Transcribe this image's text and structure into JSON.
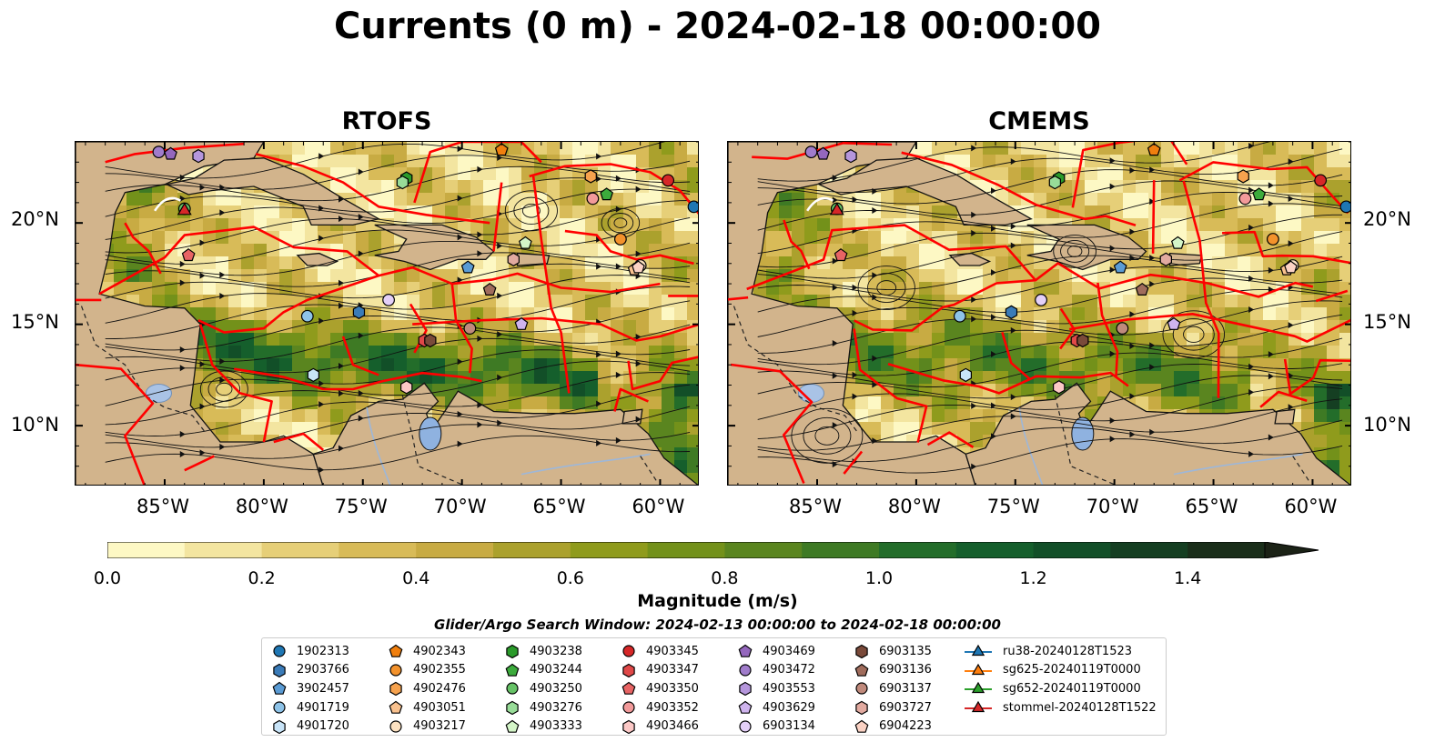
{
  "title": "Currents (0 m) - 2024-02-18 00:00:00",
  "panels": [
    {
      "title": "RTOFS"
    },
    {
      "title": "CMEMS"
    }
  ],
  "axes": {
    "lon_ticks": [
      "85°W",
      "80°W",
      "75°W",
      "70°W",
      "65°W",
      "60°W"
    ],
    "lat_ticks": [
      "20°N",
      "15°N",
      "10°N"
    ]
  },
  "colorbar": {
    "label": "Magnitude (m/s)",
    "ticks": [
      "0.0",
      "0.2",
      "0.4",
      "0.6",
      "0.8",
      "1.0",
      "1.2",
      "1.4"
    ],
    "colors": [
      "#fdf8c4",
      "#f3e5a0",
      "#e6cf78",
      "#d8bb58",
      "#c8ab43",
      "#aba12d",
      "#8f9b1c",
      "#73911a",
      "#5a851f",
      "#3e7a24",
      "#236d2a",
      "#155f2c",
      "#124f28",
      "#153f22",
      "#1a2e1a",
      "#1b2216"
    ],
    "extend": "max"
  },
  "search_window": "Glider/Argo Search Window: 2024-02-13 00:00:00 to 2024-02-18 00:00:00",
  "legend": {
    "columns": [
      [
        {
          "label": "1902313",
          "shape": "circle",
          "color": "#1f77b4"
        },
        {
          "label": "2903766",
          "shape": "hexagon",
          "color": "#3a7bb8"
        },
        {
          "label": "3902457",
          "shape": "pentagon",
          "color": "#5a9bd4"
        },
        {
          "label": "4901719",
          "shape": "circle",
          "color": "#8ec3e8"
        },
        {
          "label": "4901720",
          "shape": "hexagon",
          "color": "#c8e4f8"
        }
      ],
      [
        {
          "label": "4902343",
          "shape": "pentagon",
          "color": "#f07f0e"
        },
        {
          "label": "4902355",
          "shape": "circle",
          "color": "#f3922c"
        },
        {
          "label": "4902476",
          "shape": "hexagon",
          "color": "#f6a24e"
        },
        {
          "label": "4903051",
          "shape": "pentagon",
          "color": "#f9c18e"
        },
        {
          "label": "4903217",
          "shape": "circle",
          "color": "#fde2c2"
        }
      ],
      [
        {
          "label": "4903238",
          "shape": "hexagon",
          "color": "#2a9a2a"
        },
        {
          "label": "4903244",
          "shape": "pentagon",
          "color": "#3cab3c"
        },
        {
          "label": "4903250",
          "shape": "circle",
          "color": "#66c266"
        },
        {
          "label": "4903276",
          "shape": "hexagon",
          "color": "#98dc98"
        },
        {
          "label": "4903333",
          "shape": "pentagon",
          "color": "#d4f5c8"
        }
      ],
      [
        {
          "label": "4903345",
          "shape": "circle",
          "color": "#d62728"
        },
        {
          "label": "4903347",
          "shape": "hexagon",
          "color": "#e04848"
        },
        {
          "label": "4903350",
          "shape": "pentagon",
          "color": "#e86464"
        },
        {
          "label": "4903352",
          "shape": "circle",
          "color": "#f29a9a"
        },
        {
          "label": "4903466",
          "shape": "hexagon",
          "color": "#fcc8c6"
        }
      ],
      [
        {
          "label": "4903469",
          "shape": "pentagon",
          "color": "#9467bd"
        },
        {
          "label": "4903472",
          "shape": "circle",
          "color": "#a07ccb"
        },
        {
          "label": "4903553",
          "shape": "hexagon",
          "color": "#b596dc"
        },
        {
          "label": "4903629",
          "shape": "pentagon",
          "color": "#cfb4ee"
        },
        {
          "label": "6903134",
          "shape": "circle",
          "color": "#e4d0f8"
        }
      ],
      [
        {
          "label": "6903135",
          "shape": "hexagon",
          "color": "#7a4a3a"
        },
        {
          "label": "6903136",
          "shape": "pentagon",
          "color": "#a06c5c"
        },
        {
          "label": "6903137",
          "shape": "circle",
          "color": "#c08a7c"
        },
        {
          "label": "6903727",
          "shape": "hexagon",
          "color": "#e2aaa0"
        },
        {
          "label": "6904223",
          "shape": "pentagon",
          "color": "#fbd2c4"
        }
      ],
      [
        {
          "label": "ru38-20240128T1523",
          "shape": "triangle",
          "color": "#1f77b4"
        },
        {
          "label": "sg625-20240119T0000",
          "shape": "triangle",
          "color": "#ff7f0e"
        },
        {
          "label": "sg652-20240119T0000",
          "shape": "triangle",
          "color": "#2ca02c"
        },
        {
          "label": "stommel-20240128T1522",
          "shape": "triangle",
          "color": "#d62728"
        }
      ]
    ]
  },
  "floats": [
    {
      "label": "1902313",
      "lon": -58.3,
      "lat": 20.8,
      "shape": "circle",
      "color": "#1f77b4"
    },
    {
      "label": "2903766",
      "lon": -75.2,
      "lat": 15.6,
      "shape": "hexagon",
      "color": "#3a7bb8"
    },
    {
      "label": "3902457",
      "lon": -69.7,
      "lat": 17.8,
      "shape": "pentagon",
      "color": "#5a9bd4"
    },
    {
      "label": "4901719",
      "lon": -77.8,
      "lat": 15.4,
      "shape": "circle",
      "color": "#8ec3e8"
    },
    {
      "label": "4901720",
      "lon": -77.5,
      "lat": 12.5,
      "shape": "hexagon",
      "color": "#c8e4f8"
    },
    {
      "label": "4902343",
      "lon": -68.0,
      "lat": 23.6,
      "shape": "pentagon",
      "color": "#f07f0e"
    },
    {
      "label": "4902355",
      "lon": -62.0,
      "lat": 19.2,
      "shape": "circle",
      "color": "#f3922c"
    },
    {
      "label": "4902476",
      "lon": -63.5,
      "lat": 22.3,
      "shape": "hexagon",
      "color": "#f6a24e"
    },
    {
      "label": "4903051",
      "lon": -61.3,
      "lat": 17.7,
      "shape": "pentagon",
      "color": "#f9c18e"
    },
    {
      "label": "4903217",
      "lon": -61.0,
      "lat": 17.9,
      "shape": "circle",
      "color": "#fde2c2"
    },
    {
      "label": "4903238",
      "lon": -72.8,
      "lat": 22.2,
      "shape": "hexagon",
      "color": "#2a9a2a"
    },
    {
      "label": "4903244",
      "lon": -62.7,
      "lat": 21.4,
      "shape": "pentagon",
      "color": "#3cab3c"
    },
    {
      "label": "4903250",
      "lon": -84.0,
      "lat": 20.7,
      "shape": "circle",
      "color": "#66c266"
    },
    {
      "label": "4903276",
      "lon": -73.0,
      "lat": 22.0,
      "shape": "hexagon",
      "color": "#98dc98"
    },
    {
      "label": "4903333",
      "lon": -66.8,
      "lat": 19.0,
      "shape": "pentagon",
      "color": "#d4f5c8"
    },
    {
      "label": "4903345",
      "lon": -59.6,
      "lat": 22.1,
      "shape": "circle",
      "color": "#d62728"
    },
    {
      "label": "4903347",
      "lon": -71.9,
      "lat": 14.2,
      "shape": "hexagon",
      "color": "#e04848"
    },
    {
      "label": "4903350",
      "lon": -83.8,
      "lat": 18.4,
      "shape": "pentagon",
      "color": "#e86464"
    },
    {
      "label": "4903352",
      "lon": -63.4,
      "lat": 21.2,
      "shape": "circle",
      "color": "#f29a9a"
    },
    {
      "label": "4903466",
      "lon": -72.8,
      "lat": 11.9,
      "shape": "hexagon",
      "color": "#fcc8c6"
    },
    {
      "label": "4903469",
      "lon": -84.7,
      "lat": 23.4,
      "shape": "pentagon",
      "color": "#9467bd"
    },
    {
      "label": "4903472",
      "lon": -85.3,
      "lat": 23.5,
      "shape": "circle",
      "color": "#a07ccb"
    },
    {
      "label": "4903553",
      "lon": -83.3,
      "lat": 23.3,
      "shape": "hexagon",
      "color": "#b596dc"
    },
    {
      "label": "4903629",
      "lon": -67.0,
      "lat": 15.0,
      "shape": "pentagon",
      "color": "#cfb4ee"
    },
    {
      "label": "6903134",
      "lon": -73.7,
      "lat": 16.2,
      "shape": "circle",
      "color": "#e4d0f8"
    },
    {
      "label": "6903135",
      "lon": -71.6,
      "lat": 14.2,
      "shape": "hexagon",
      "color": "#7a4a3a"
    },
    {
      "label": "6903136",
      "lon": -68.6,
      "lat": 16.7,
      "shape": "pentagon",
      "color": "#a06c5c"
    },
    {
      "label": "6903137",
      "lon": -69.6,
      "lat": 14.8,
      "shape": "circle",
      "color": "#c08a7c"
    },
    {
      "label": "6903727",
      "lon": -67.4,
      "lat": 18.2,
      "shape": "hexagon",
      "color": "#e2aaa0"
    },
    {
      "label": "6904223",
      "lon": -61.1,
      "lat": 17.8,
      "shape": "pentagon",
      "color": "#fbd2c4"
    }
  ],
  "gliders": [
    {
      "label": "stommel-20240128T1522",
      "lon": -84.0,
      "lat": 20.6,
      "color": "#d62728"
    }
  ]
}
